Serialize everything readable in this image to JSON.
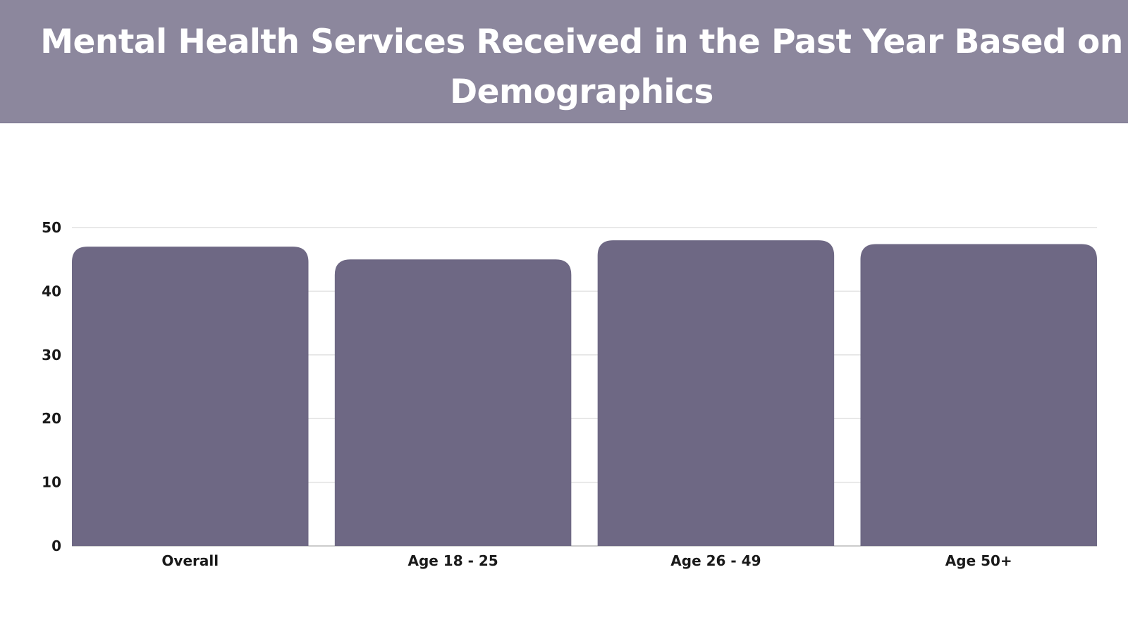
{
  "header": {
    "title": "Mental Health Services Received in the Past Year Based on Demographics"
  },
  "colors": {
    "header_bg": "#8c879d",
    "bar": "#6e6884"
  },
  "chart_data": {
    "type": "bar",
    "title": "Mental Health Services Received in the Past Year Based on Demographics",
    "categories": [
      "Overall",
      "Age 18 - 25",
      "Age 26 - 49",
      "Age 50+"
    ],
    "values": [
      47,
      45,
      48,
      47.4
    ],
    "xlabel": "",
    "ylabel": "",
    "ylim": [
      0,
      50
    ],
    "yticks": [
      0,
      10,
      20,
      30,
      40,
      50
    ],
    "grid": true,
    "legend": "none"
  }
}
